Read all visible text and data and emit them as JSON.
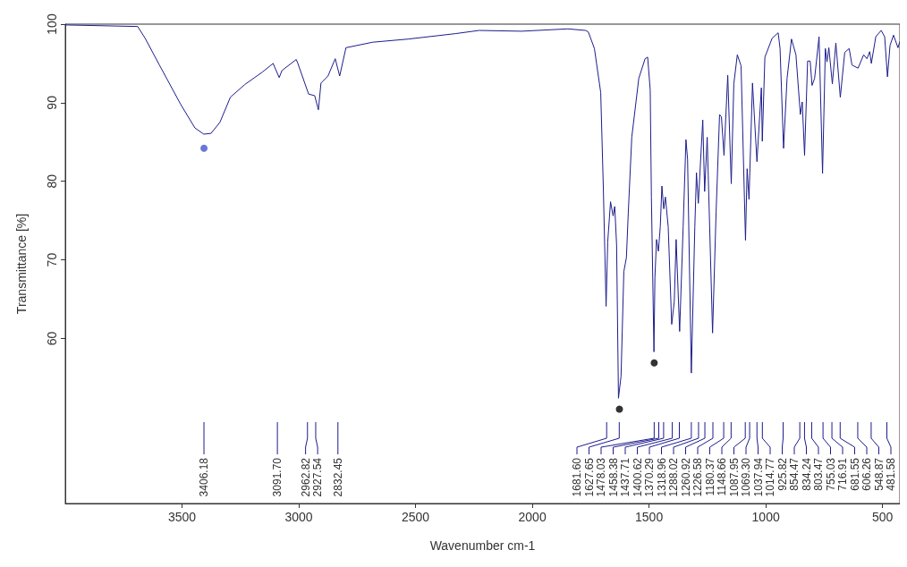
{
  "chart_data": {
    "type": "line",
    "xlabel": "Wavenumber cm-1",
    "ylabel": "Transmittance [%]",
    "xlim": [
      4000,
      426
    ],
    "xticks": [
      3500,
      3000,
      2500,
      2000,
      1500,
      1000,
      500
    ],
    "ylim": [
      39,
      100
    ],
    "yticks": [
      60,
      70,
      80,
      90,
      100
    ],
    "grid": false,
    "marker": "none",
    "line_style": "solid",
    "series": [
      {
        "color": "#1c1c8c",
        "x": [
          4000,
          3690,
          3658,
          3597,
          3506,
          3445,
          3407,
          3376,
          3338,
          3293,
          3232,
          3156,
          3110,
          3084,
          3072,
          3011,
          3004,
          2958,
          2932,
          2916,
          2905,
          2875,
          2844,
          2825,
          2798,
          2684,
          2532,
          2327,
          2228,
          2046,
          1848,
          1772,
          1760,
          1734,
          1707,
          1696,
          1684,
          1677,
          1665,
          1654,
          1647,
          1639,
          1631,
          1620,
          1608,
          1597,
          1589,
          1574,
          1544,
          1517,
          1506,
          1495,
          1490,
          1479,
          1475,
          1468,
          1460,
          1452,
          1445,
          1437,
          1430,
          1418,
          1403,
          1392,
          1384,
          1369,
          1354,
          1342,
          1335,
          1319,
          1304,
          1297,
          1289,
          1270,
          1262,
          1251,
          1228,
          1213,
          1198,
          1190,
          1179,
          1163,
          1148,
          1137,
          1122,
          1106,
          1087,
          1080,
          1072,
          1057,
          1038,
          1019,
          1015,
          1004,
          973,
          947,
          939,
          924,
          909,
          890,
          871,
          852,
          844,
          834,
          821,
          810,
          802,
          791,
          772,
          757,
          745,
          738,
          730,
          715,
          700,
          681,
          662,
          643,
          631,
          605,
          581,
          567,
          555,
          548,
          529,
          506,
          491,
          479,
          468,
          453,
          434,
          426
        ],
        "values": [
          99.9,
          99.7,
          98.2,
          94.8,
          89.8,
          86.8,
          86.0,
          86.1,
          87.5,
          90.7,
          92.3,
          93.9,
          95.0,
          93.2,
          94.1,
          95.5,
          95.0,
          91.1,
          90.9,
          89.1,
          92.5,
          93.4,
          95.6,
          93.4,
          97.0,
          97.7,
          98.1,
          98.8,
          99.2,
          99.1,
          99.4,
          99.2,
          99.0,
          96.9,
          91.3,
          79.4,
          64.1,
          72.3,
          77.4,
          75.6,
          76.8,
          71.9,
          52.4,
          55.2,
          68.5,
          70.3,
          76.0,
          85.6,
          93.1,
          95.6,
          95.8,
          91.6,
          78.0,
          58.3,
          67.7,
          72.6,
          71.1,
          74.2,
          79.4,
          76.5,
          78.0,
          74.2,
          61.8,
          64.7,
          72.6,
          60.9,
          74.2,
          85.3,
          82.8,
          55.6,
          74.2,
          81.1,
          77.2,
          87.8,
          78.7,
          85.6,
          60.7,
          76.0,
          88.5,
          88.2,
          83.3,
          93.5,
          79.7,
          92.4,
          96.1,
          94.7,
          72.5,
          81.6,
          77.7,
          92.5,
          82.5,
          91.9,
          85.1,
          95.8,
          98.2,
          98.9,
          96.9,
          84.2,
          93.1,
          98.1,
          96.1,
          88.5,
          90.1,
          83.3,
          95.3,
          95.3,
          92.2,
          93.1,
          98.4,
          81.0,
          96.9,
          95.2,
          97.0,
          92.4,
          97.6,
          90.7,
          96.4,
          96.9,
          94.8,
          94.4,
          96.1,
          95.6,
          96.5,
          95.0,
          98.4,
          99.2,
          98.4,
          93.3,
          97.3,
          98.6,
          97.0,
          97.8
        ]
      },
      {
        "type": "scatter",
        "marker": "circle",
        "color": "#4455cc",
        "x": [
          3406
        ],
        "values": [
          84.2
        ]
      },
      {
        "type": "scatter",
        "marker": "circle",
        "color": "#000000",
        "x": [
          1627,
          1478
        ],
        "values": [
          51.0,
          56.9
        ]
      }
    ],
    "annotations": [
      {
        "text": "3406.18",
        "x": 3406.18
      },
      {
        "text": "3091.70",
        "x": 3091.7
      },
      {
        "text": "2962.82",
        "x": 2962.82
      },
      {
        "text": "2927.54",
        "x": 2927.54
      },
      {
        "text": "2832.45",
        "x": 2832.45
      },
      {
        "text": "1681.60",
        "x": 1681.6
      },
      {
        "text": "1627.65",
        "x": 1627.65
      },
      {
        "text": "1478.03",
        "x": 1478.03
      },
      {
        "text": "1458.38",
        "x": 1458.38
      },
      {
        "text": "1437.71",
        "x": 1437.71
      },
      {
        "text": "1400.62",
        "x": 1400.62
      },
      {
        "text": "1370.29",
        "x": 1370.29
      },
      {
        "text": "1318.96",
        "x": 1318.96
      },
      {
        "text": "1288.02",
        "x": 1288.02
      },
      {
        "text": "1260.92",
        "x": 1260.92
      },
      {
        "text": "1226.58",
        "x": 1226.58
      },
      {
        "text": "1180.37",
        "x": 1180.37
      },
      {
        "text": "1148.66",
        "x": 1148.66
      },
      {
        "text": "1087.95",
        "x": 1087.95
      },
      {
        "text": "1069.30",
        "x": 1069.3
      },
      {
        "text": "1037.94",
        "x": 1037.94
      },
      {
        "text": "1014.77",
        "x": 1014.77
      },
      {
        "text": "925.82",
        "x": 925.82
      },
      {
        "text": "854.47",
        "x": 854.47
      },
      {
        "text": "834.24",
        "x": 834.24
      },
      {
        "text": "803.47",
        "x": 803.47
      },
      {
        "text": "755.03",
        "x": 755.03
      },
      {
        "text": "716.91",
        "x": 716.91
      },
      {
        "text": "681.55",
        "x": 681.55
      },
      {
        "text": "606.26",
        "x": 606.26
      },
      {
        "text": "548.87",
        "x": 548.87
      },
      {
        "text": "481.58",
        "x": 481.58
      }
    ]
  }
}
